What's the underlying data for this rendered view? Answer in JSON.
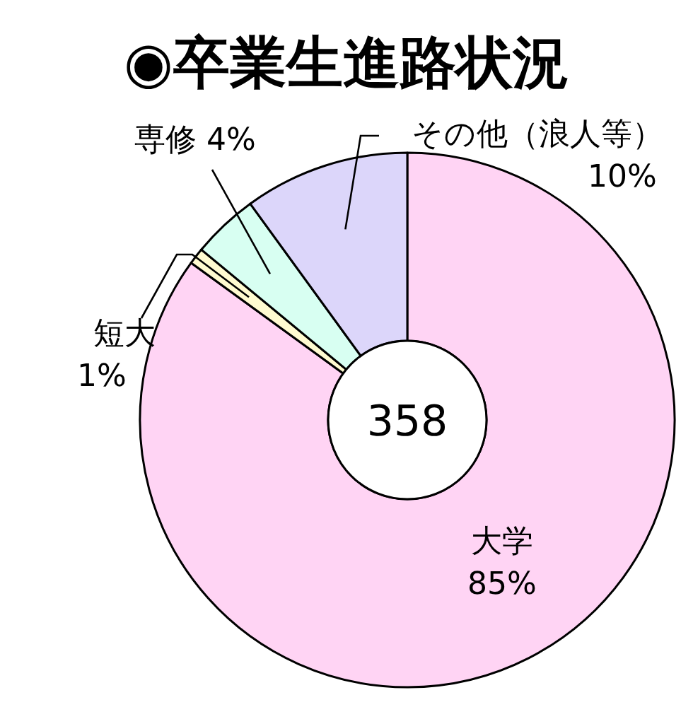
{
  "chart_data": {
    "type": "donut",
    "title": "◉卒業生進路状況",
    "categories": [
      "大学",
      "短大",
      "専修",
      "その他（浪人等）"
    ],
    "values": [
      85,
      1,
      4,
      10
    ],
    "colors": [
      "#ffd4f4",
      "#fffbd0",
      "#d8fff2",
      "#dcd6fa"
    ],
    "value_labels": [
      "85%",
      "1%",
      "4%",
      "10%"
    ],
    "annotations": [
      "358"
    ]
  }
}
